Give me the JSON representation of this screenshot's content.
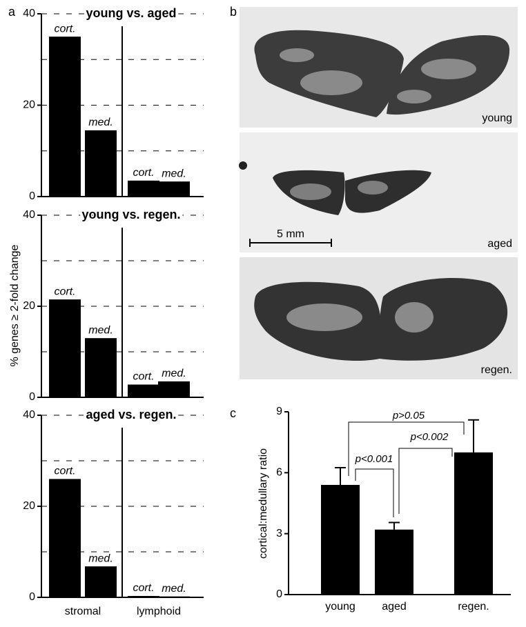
{
  "panel_labels": [
    "a",
    "b",
    "c"
  ],
  "images": {
    "labels": [
      "young",
      "aged",
      "regen."
    ],
    "scale_bar": "5 mm"
  },
  "chart_data": [
    {
      "type": "bar",
      "title": "young vs. aged",
      "ylabel": "% genes ≥ 2-fold change",
      "categories": [
        "cort.",
        "med.",
        "cort.",
        "med."
      ],
      "values": [
        35,
        14.5,
        3.5,
        3.3
      ],
      "color": "#000000",
      "ylim": [
        0,
        40
      ],
      "yticks": [
        0,
        20,
        40
      ],
      "grid_lines": [
        10,
        20,
        30,
        40
      ]
    },
    {
      "type": "bar",
      "title": "young vs. regen.",
      "categories": [
        "cort.",
        "med.",
        "cort.",
        "med."
      ],
      "values": [
        21.5,
        13,
        2.8,
        3.5
      ],
      "color": "#000000",
      "ylim": [
        0,
        40
      ],
      "yticks": [
        0,
        20,
        40
      ],
      "grid_lines": [
        10,
        20,
        30,
        40
      ]
    },
    {
      "type": "bar",
      "title": "aged vs. regen.",
      "categories": [
        "cort.",
        "med.",
        "cort.",
        "med."
      ],
      "values": [
        26,
        6.8,
        0.3,
        0.2
      ],
      "color": "#000000",
      "groups": [
        "stromal",
        "lymphoid"
      ],
      "ylim": [
        0,
        40
      ],
      "yticks": [
        0,
        20,
        40
      ],
      "grid_lines": [
        10,
        20,
        30,
        40
      ]
    },
    {
      "type": "bar",
      "ylabel": "cortical:medullary ratio",
      "categories": [
        "young",
        "aged",
        "regen."
      ],
      "values": [
        5.4,
        3.2,
        7.0
      ],
      "errors": [
        0.85,
        0.35,
        1.6
      ],
      "color": "#000000",
      "ylim": [
        0,
        9
      ],
      "yticks": [
        0,
        3,
        6,
        9
      ],
      "annotations": [
        "p>0.05",
        "p<0.001",
        "p<0.002"
      ]
    }
  ]
}
